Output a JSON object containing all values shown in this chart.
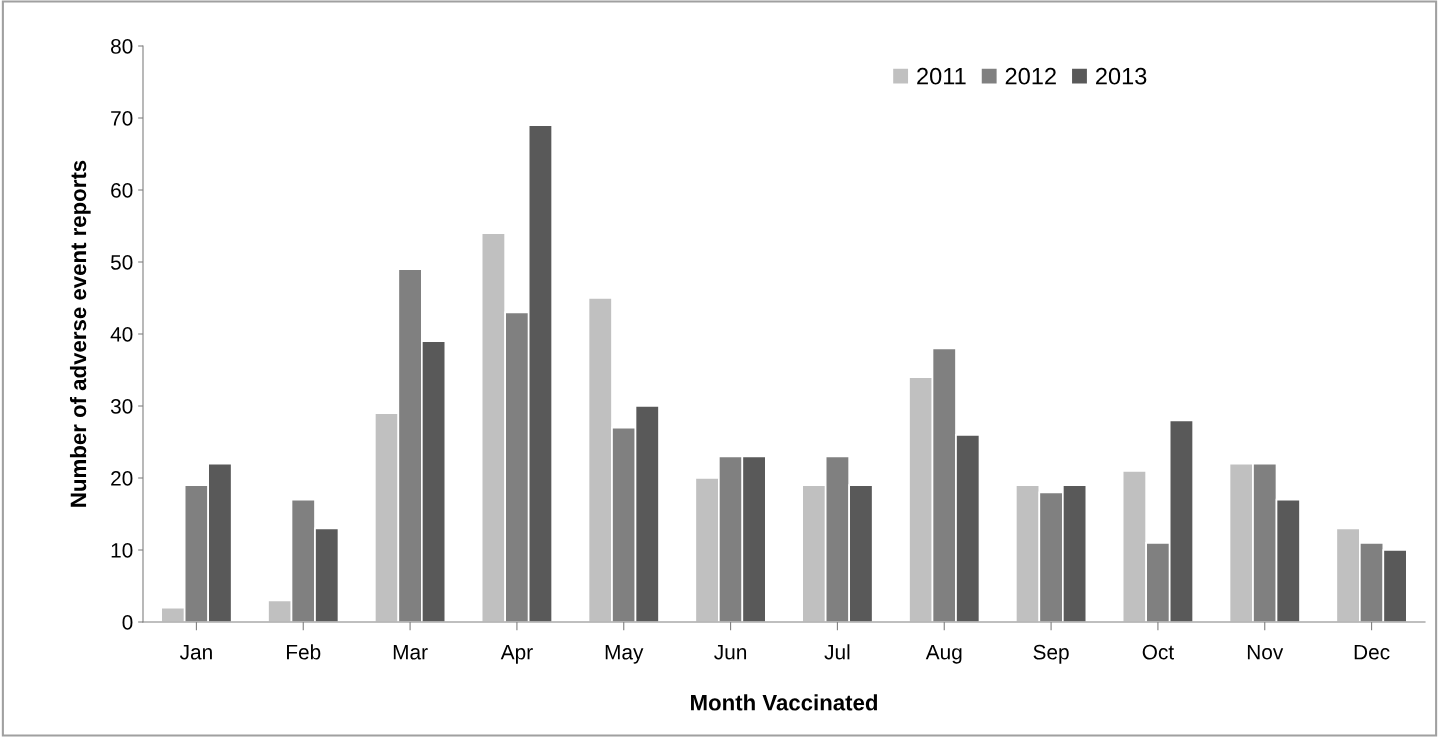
{
  "chart_data": {
    "type": "bar",
    "xlabel": "Month Vaccinated",
    "ylabel": "Number of adverse event reports",
    "categories": [
      "Jan",
      "Feb",
      "Mar",
      "Apr",
      "May",
      "Jun",
      "Jul",
      "Aug",
      "Sep",
      "Oct",
      "Nov",
      "Dec"
    ],
    "series": [
      {
        "name": "2011",
        "color": "#c0c0c0",
        "values": [
          2,
          3,
          29,
          54,
          45,
          20,
          19,
          34,
          19,
          21,
          22,
          13
        ]
      },
      {
        "name": "2012",
        "color": "#808080",
        "values": [
          19,
          17,
          49,
          43,
          27,
          23,
          23,
          38,
          18,
          11,
          22,
          11
        ]
      },
      {
        "name": "2013",
        "color": "#595959",
        "values": [
          22,
          13,
          39,
          69,
          30,
          23,
          19,
          26,
          19,
          28,
          17,
          10
        ]
      }
    ],
    "ylim": [
      0,
      80
    ],
    "yticks": [
      0,
      10,
      20,
      30,
      40,
      50,
      60,
      70,
      80
    ],
    "grid": false,
    "legend": "top right"
  }
}
